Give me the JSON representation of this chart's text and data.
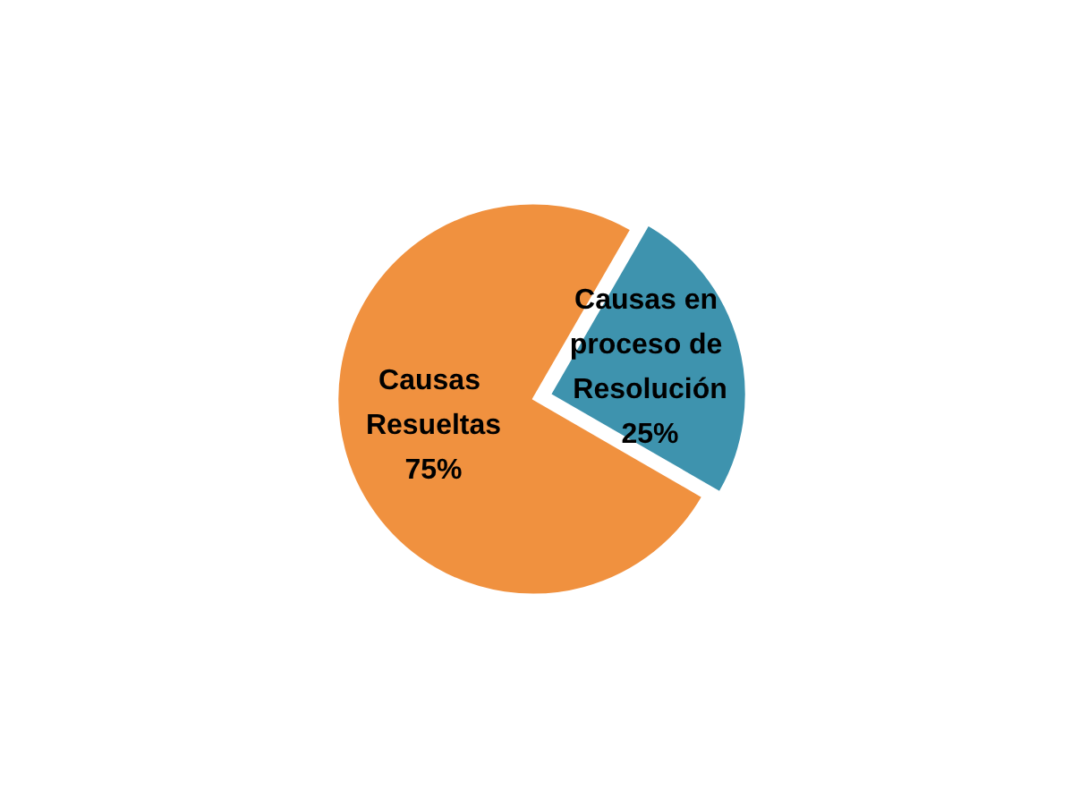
{
  "chart_data": {
    "type": "pie",
    "categories": [
      "Causas Resueltas",
      "Causas en proceso de Resolución"
    ],
    "values": [
      75,
      25
    ],
    "colors": [
      "#f0913f",
      "#3e93ae"
    ],
    "value_labels": [
      "75%",
      "25%"
    ]
  }
}
